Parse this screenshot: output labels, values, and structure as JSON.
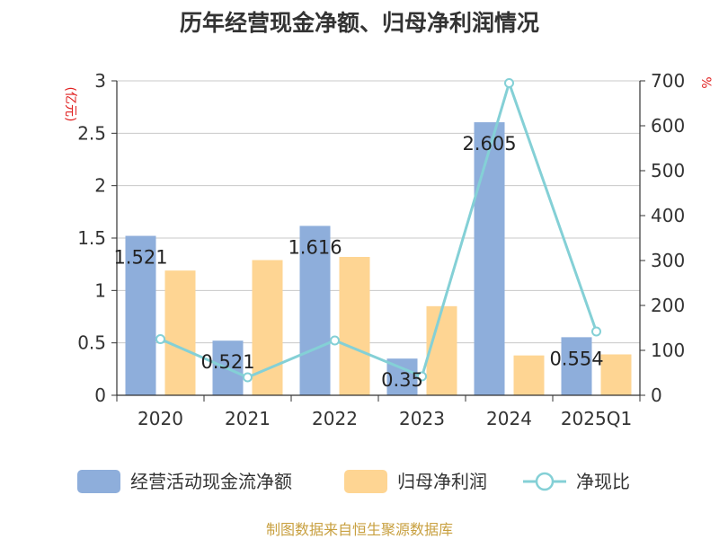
{
  "title": "历年经营现金净额、归母净利润情况",
  "source": "制图数据来自恒生聚源数据库",
  "colors": {
    "bar_cash": "#8eaedb",
    "bar_profit": "#fed593",
    "line_ratio": "#84d0d6",
    "unit_red": "#e02020",
    "axis": "#333333",
    "grid": "#c8c8c8"
  },
  "chart_data": {
    "type": "bar",
    "title": "历年经营现金净额、归母净利润情况",
    "categories": [
      "2020",
      "2021",
      "2022",
      "2023",
      "2024",
      "2025Q1"
    ],
    "y_left": {
      "unit": "(亿元)",
      "ylim": [
        0,
        3
      ],
      "ticks": [
        "0",
        "0.5",
        "1",
        "1.5",
        "2",
        "2.5",
        "3"
      ]
    },
    "y_right": {
      "unit": "%",
      "ylim": [
        0,
        700
      ],
      "ticks": [
        "0",
        "100",
        "200",
        "300",
        "400",
        "500",
        "600",
        "700"
      ]
    },
    "grid": true,
    "legend_position": "bottom",
    "series": [
      {
        "name": "经营活动现金流净额",
        "kind": "bar",
        "axis": "left",
        "values": [
          1.521,
          0.521,
          1.616,
          0.35,
          2.605,
          0.554
        ],
        "labels": [
          "1.521",
          "0.521",
          "1.616",
          "0.35",
          "2.605",
          "0.554"
        ]
      },
      {
        "name": "归母净利润",
        "kind": "bar",
        "axis": "left",
        "values": [
          1.19,
          1.29,
          1.32,
          0.85,
          0.38,
          0.39
        ]
      },
      {
        "name": "净现比",
        "kind": "line",
        "axis": "right",
        "values": [
          125,
          40,
          122,
          42,
          695,
          142
        ]
      }
    ]
  }
}
